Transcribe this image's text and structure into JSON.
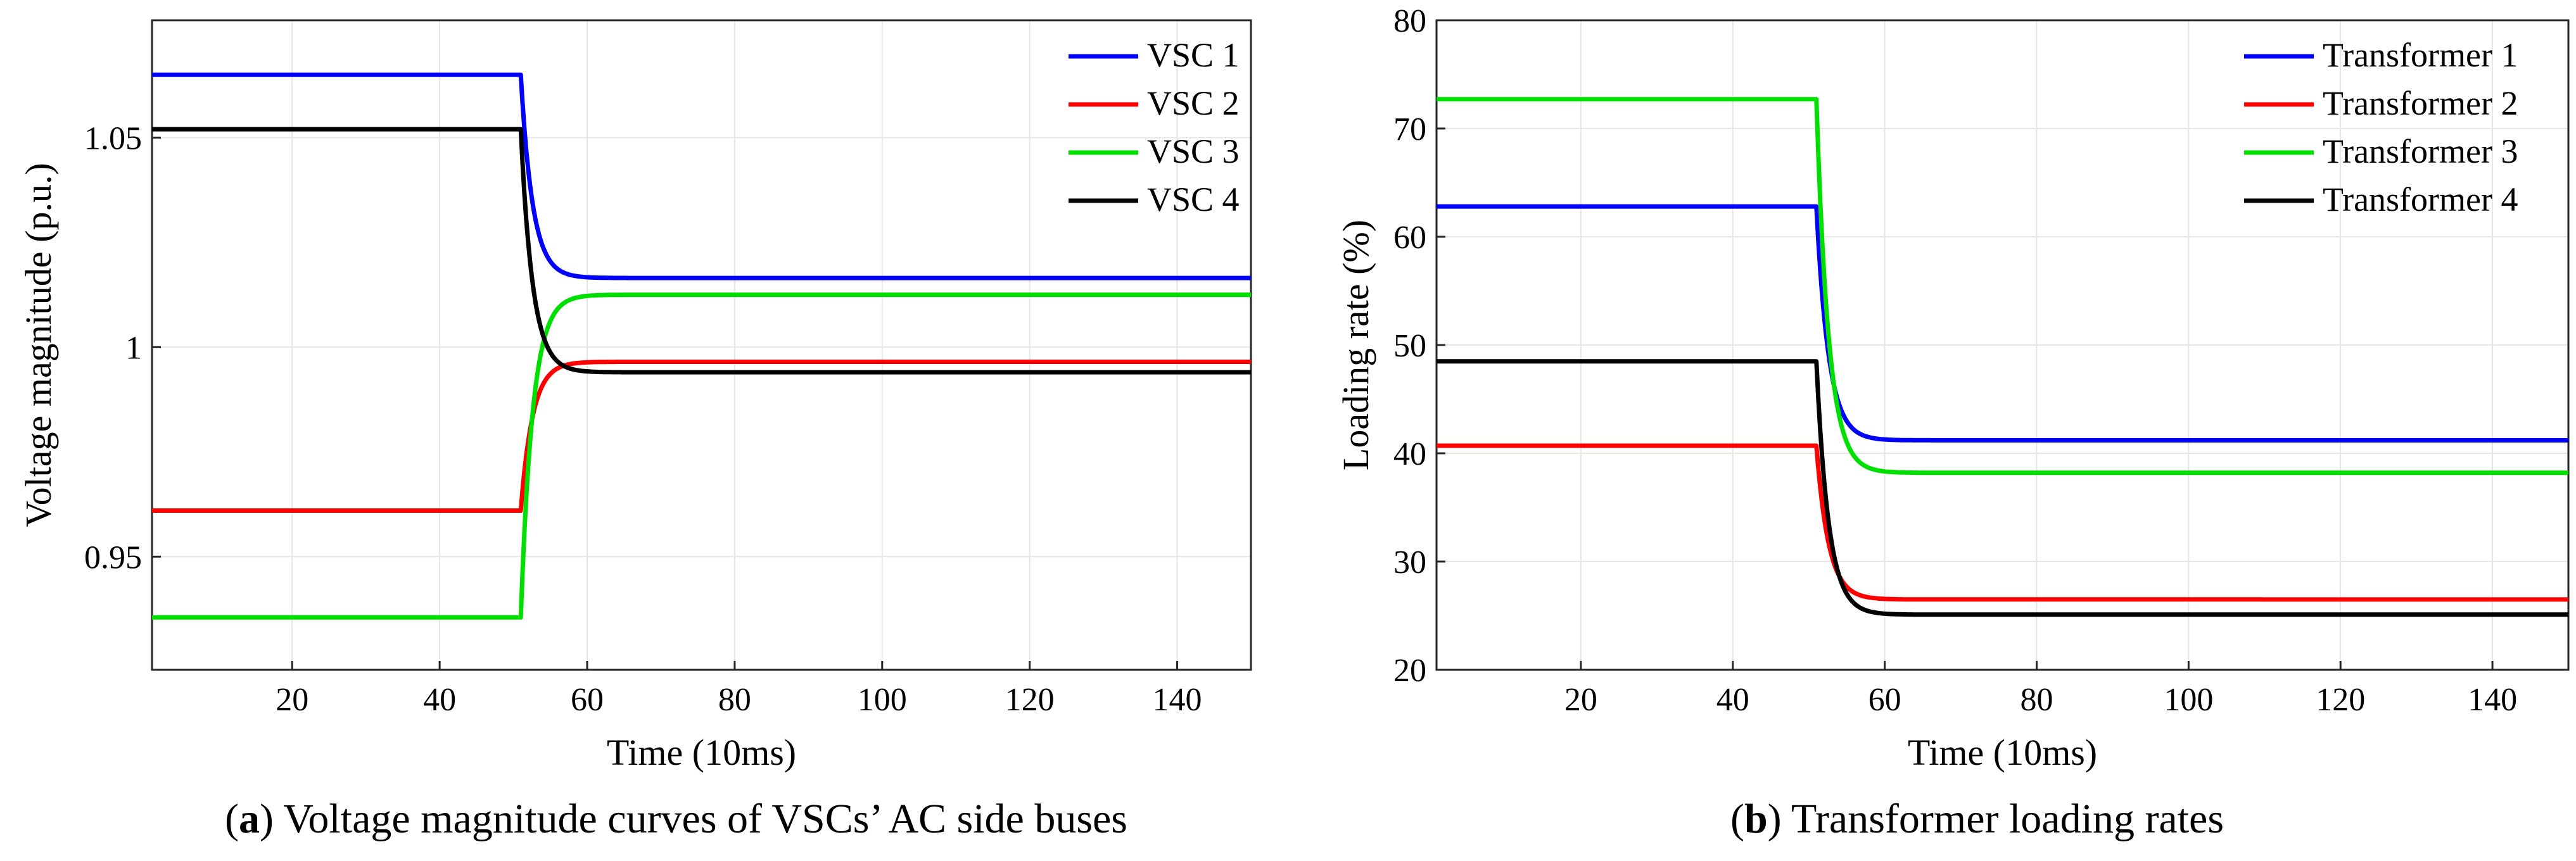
{
  "chart_data": [
    {
      "id": "a",
      "type": "line",
      "xlabel": "Time (10ms)",
      "ylabel": "Voltage magnitude (p.u.)",
      "xlim": [
        1,
        150
      ],
      "ylim": [
        0.923,
        1.078
      ],
      "xticks": [
        20,
        40,
        60,
        80,
        100,
        120,
        140
      ],
      "yticks": [
        0.95,
        1,
        1.05
      ],
      "ytick_labels": [
        "0.95",
        "1",
        "1.05"
      ],
      "grid": true,
      "legend_position": "top-right",
      "step_time": 51,
      "settle_tau": 1.6,
      "series": [
        {
          "name": "VSC 1",
          "color": "#0000ff",
          "x": [
            1,
            51,
            150
          ],
          "values": [
            1.065,
            1.065,
            1.0165
          ]
        },
        {
          "name": "VSC 2",
          "color": "#ff0000",
          "x": [
            1,
            51,
            150
          ],
          "values": [
            0.961,
            0.961,
            0.9965
          ]
        },
        {
          "name": "VSC 3",
          "color": "#00e000",
          "x": [
            1,
            51,
            150
          ],
          "values": [
            0.9355,
            0.9355,
            1.0125
          ]
        },
        {
          "name": "VSC 4",
          "color": "#000000",
          "x": [
            1,
            51,
            150
          ],
          "values": [
            1.052,
            1.052,
            0.994
          ]
        }
      ],
      "caption_label": "(a)",
      "caption_text": "Voltage magnitude curves of VSCs’ AC side buses"
    },
    {
      "id": "b",
      "type": "line",
      "xlabel": "Time (10ms)",
      "ylabel": "Loading rate (%)",
      "xlim": [
        1,
        150
      ],
      "ylim": [
        20,
        80
      ],
      "xticks": [
        20,
        40,
        60,
        80,
        100,
        120,
        140
      ],
      "yticks": [
        20,
        30,
        40,
        50,
        60,
        70,
        80
      ],
      "ytick_labels": [
        "20",
        "30",
        "40",
        "50",
        "60",
        "70",
        "80"
      ],
      "grid": true,
      "legend_position": "top-right",
      "step_time": 51,
      "settle_tau": 1.6,
      "series": [
        {
          "name": "Transformer 1",
          "color": "#0000ff",
          "x": [
            1,
            51,
            150
          ],
          "values": [
            62.8,
            62.8,
            41.2
          ]
        },
        {
          "name": "Transformer 2",
          "color": "#ff0000",
          "x": [
            1,
            51,
            150
          ],
          "values": [
            40.7,
            40.7,
            26.5
          ]
        },
        {
          "name": "Transformer 3",
          "color": "#00e000",
          "x": [
            1,
            51,
            150
          ],
          "values": [
            72.7,
            72.7,
            38.2
          ]
        },
        {
          "name": "Transformer 4",
          "color": "#000000",
          "x": [
            1,
            51,
            150
          ],
          "values": [
            48.5,
            48.5,
            25.1
          ]
        }
      ],
      "caption_label": "(b)",
      "caption_text": "Transformer loading rates"
    }
  ]
}
